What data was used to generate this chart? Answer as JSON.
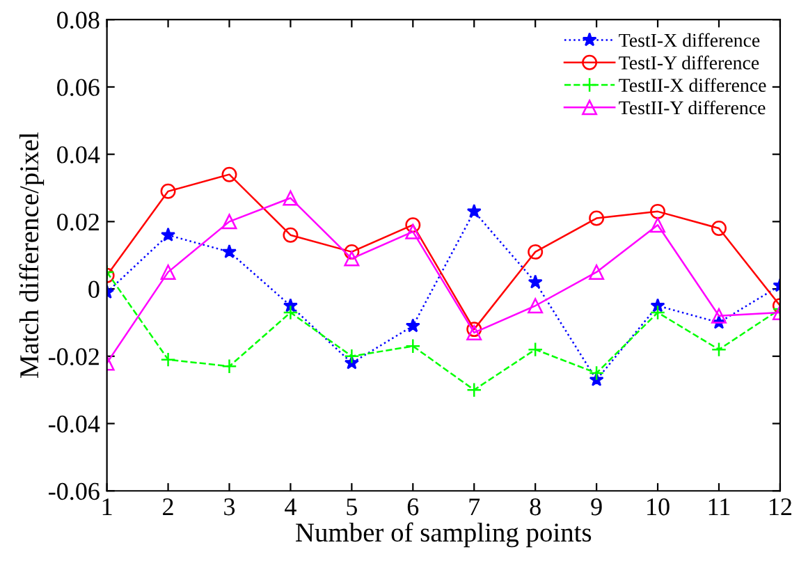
{
  "chart_data": {
    "type": "line",
    "xlabel": "Number of sampling points",
    "ylabel": "Match difference/pixel",
    "x": [
      1,
      2,
      3,
      4,
      5,
      6,
      7,
      8,
      9,
      10,
      11,
      12
    ],
    "xlim": [
      1,
      12
    ],
    "xticks": [
      1,
      2,
      3,
      4,
      5,
      6,
      7,
      8,
      9,
      10,
      11,
      12
    ],
    "ylim": [
      -0.06,
      0.08
    ],
    "yticks": [
      -0.06,
      -0.04,
      -0.02,
      {
        "value": 0,
        "label": "0"
      },
      0.02,
      0.04,
      0.06,
      0.08
    ],
    "grid": false,
    "legend": "top right",
    "series": [
      {
        "name": "TestI-X difference",
        "color": "#0000ff",
        "marker": "star",
        "line_style": "dotted",
        "values": [
          -0.001,
          0.016,
          0.011,
          -0.005,
          -0.022,
          -0.011,
          0.023,
          0.002,
          -0.027,
          -0.005,
          -0.01,
          0.001
        ]
      },
      {
        "name": "TestI-Y difference",
        "color": "#ff0000",
        "marker": "circle",
        "line_style": "solid",
        "values": [
          0.004,
          0.029,
          0.034,
          0.016,
          0.011,
          0.019,
          -0.012,
          0.011,
          0.021,
          0.023,
          0.018,
          -0.005
        ]
      },
      {
        "name": "TestII-X difference",
        "color": "#00ff00",
        "marker": "cross",
        "line_style": "dashed",
        "values": [
          0.005,
          -0.021,
          -0.023,
          -0.007,
          -0.02,
          -0.017,
          -0.03,
          -0.018,
          -0.025,
          -0.007,
          -0.018,
          -0.006
        ]
      },
      {
        "name": "TestII-Y difference",
        "color": "#ff00ff",
        "marker": "triangle",
        "line_style": "solid",
        "values": [
          -0.022,
          0.005,
          0.02,
          0.027,
          0.009,
          0.017,
          -0.013,
          -0.005,
          0.005,
          0.019,
          -0.008,
          -0.007
        ]
      }
    ]
  }
}
